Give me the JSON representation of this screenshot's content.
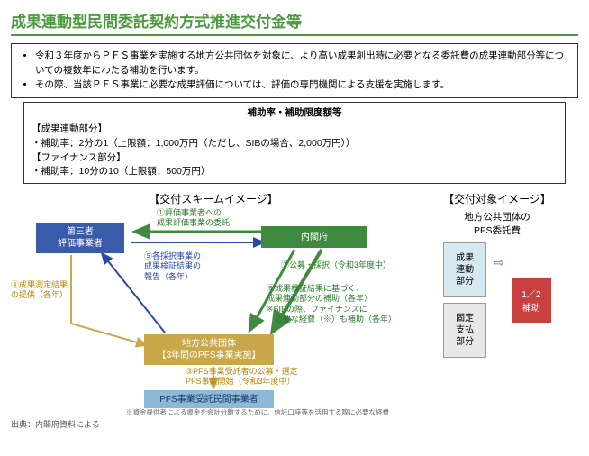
{
  "title": "成果連動型民間委託契約方式推進交付金等",
  "intro": {
    "b1": "令和３年度からＰＦＳ事業を実施する地方公共団体を対象に、より高い成果創出時に必要となる委託費の成果連動部分等についての複数年にわたる補助を行います。",
    "b2": "その際、当該ＰＦＳ事業に必要な成果評価については、評価の専門機関による支援を実施します。"
  },
  "rate": {
    "title": "補助率・補助限度額等",
    "h1": "【成果連動部分】",
    "l1": "・補助率：2分の1（上限額：1,000万円（ただし、SIBの場合、2,000万円））",
    "h2": "【ファイナンス部分】",
    "l2": "・補助率：10分の10（上限額：500万円）"
  },
  "scheme_title": "【交付スキームイメージ】",
  "target_title": "【交付対象イメージ】",
  "boxes": {
    "eval": "第三者\n評価事業者",
    "cabinet": "内閣府",
    "local": "地方公共団体\n【3年間のPFS事業実施】",
    "pfs": "PFS事業受託民間事業者"
  },
  "labels": {
    "l1": "①評価事業者への\n成果評価事業の委託",
    "l2": "②公募・採択（令和3年度中）",
    "l3": "③PFS事業受託者の公募・選定\nPFS事業開始（令和3年度中）",
    "l4": "④成果測定結果\nの提供（各年）",
    "l5": "⑤各採択事業の\n成果検証結果の\n報告（各年）",
    "l6": "⑥成果検証結果に基づく、\n成果連動部分の補助（各年）\n※SIBの際、ファイナンスに\n　必要な経費（※）も補助（各年）",
    "note": "※資金提供者による資金を会計分離するために、信託口座等を活用する際に必要な経費"
  },
  "target": {
    "head": "地方公共団体の\nPFS委託費",
    "top": "成果\n連動\n部分",
    "bot": "固定\n支払\n部分",
    "sub": "1／2\n補助",
    "arrow": "⇨"
  },
  "arrows": {
    "green": "#3e8a3e",
    "blue": "#2a4aa8",
    "orange": "#c9a84a"
  },
  "source": "出典：内閣府資料による"
}
